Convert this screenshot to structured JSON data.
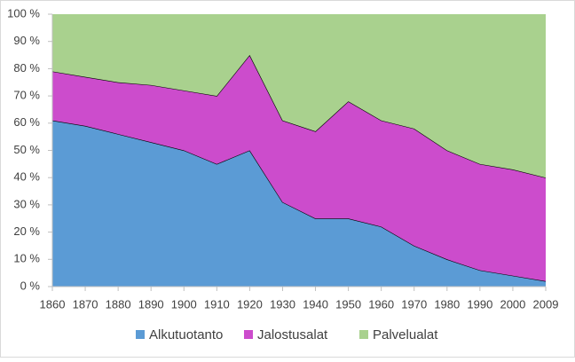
{
  "chart_data": {
    "type": "area",
    "stacked": true,
    "categories": [
      "1860",
      "1870",
      "1880",
      "1890",
      "1900",
      "1910",
      "1920",
      "1930",
      "1940",
      "1950",
      "1960",
      "1970",
      "1980",
      "1990",
      "2000",
      "2009"
    ],
    "series": [
      {
        "name": "Alkutuotanto",
        "color": "#5b9bd5",
        "values": [
          61,
          59,
          56,
          53,
          50,
          45,
          50,
          31,
          25,
          25,
          22,
          15,
          10,
          6,
          4,
          2
        ]
      },
      {
        "name": "Jalostusalat",
        "color": "#cc4ccc",
        "values": [
          18,
          18,
          19,
          21,
          22,
          25,
          35,
          30,
          32,
          43,
          39,
          43,
          40,
          39,
          39,
          38
        ]
      },
      {
        "name": "Palvelualat",
        "color": "#a9d18e",
        "values": [
          21,
          23,
          25,
          26,
          28,
          30,
          15,
          39,
          43,
          32,
          39,
          42,
          50,
          55,
          57,
          60
        ]
      }
    ],
    "ylim": [
      0,
      100
    ],
    "yticks": [
      {
        "value": 0,
        "label": "0 %"
      },
      {
        "value": 10,
        "label": "10 %"
      },
      {
        "value": 20,
        "label": "20 %"
      },
      {
        "value": 30,
        "label": "30 %"
      },
      {
        "value": 40,
        "label": "40 %"
      },
      {
        "value": 50,
        "label": "50 %"
      },
      {
        "value": 60,
        "label": "60 %"
      },
      {
        "value": 70,
        "label": "70 %"
      },
      {
        "value": 80,
        "label": "80 %"
      },
      {
        "value": 90,
        "label": "90 %"
      },
      {
        "value": 100,
        "label": "100 %"
      }
    ],
    "legend": "bottom",
    "outline": "#000000"
  }
}
